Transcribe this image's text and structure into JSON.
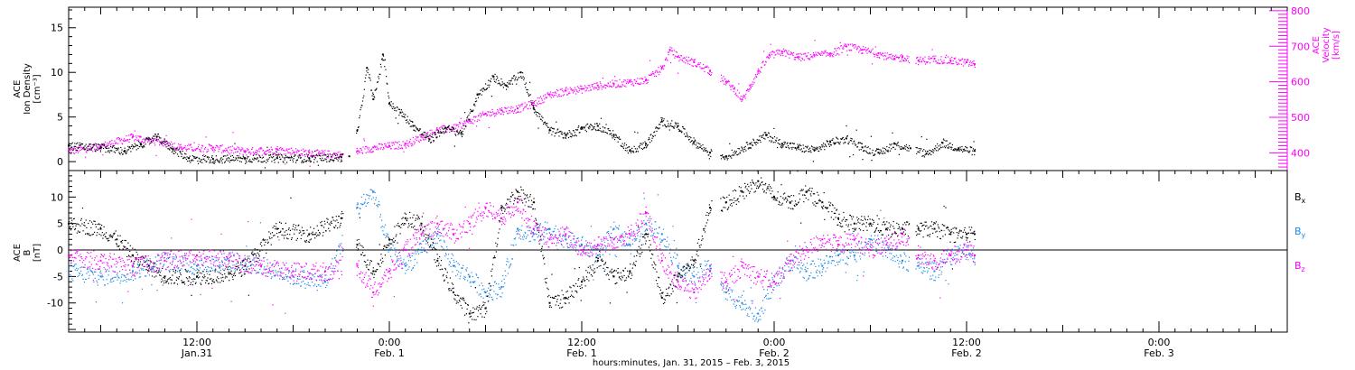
{
  "figure": {
    "xlabel": "hours:minutes, Jan. 31, 2015 – Feb. 3, 2015",
    "x_start_hours": 4,
    "x_end_hours": 80,
    "data_end_hours": 60.5
  },
  "colors": {
    "black": "#000000",
    "magenta": "#ff00ff",
    "blue": "#1e88e5"
  },
  "chart_data": [
    {
      "type": "scatter",
      "panel": "plasma",
      "left_axis": {
        "label_lines": [
          "ACE",
          "Ion Density",
          "[cm⁻³]"
        ],
        "ticks": [
          0,
          5,
          10,
          15
        ],
        "ylim": [
          -1,
          17.3
        ]
      },
      "right_axis": {
        "label_lines": [
          "ACE",
          "Velocity",
          "[km/s]"
        ],
        "ticks": [
          400,
          500,
          600,
          700,
          800
        ],
        "ylim": [
          350,
          810
        ],
        "color": "#ff00ff"
      },
      "series": [
        {
          "name": "Ion Density",
          "axis": "left",
          "color": "#000000",
          "points": [
            [
              4,
              1.8
            ],
            [
              6,
              1.6
            ],
            [
              7.5,
              1.2
            ],
            [
              8.5,
              2.0
            ],
            [
              9.5,
              2.8
            ],
            [
              10.5,
              1.4
            ],
            [
              11.5,
              0.4
            ],
            [
              13,
              0.3
            ],
            [
              15,
              0.4
            ],
            [
              17,
              0.4
            ],
            [
              19,
              0.4
            ],
            [
              21,
              0.5
            ],
            [
              21.5,
              0.6
            ],
            [
              22,
              3.5
            ],
            [
              22.6,
              10.5
            ],
            [
              23,
              7
            ],
            [
              23.6,
              12
            ],
            [
              24,
              6.5
            ],
            [
              24.7,
              5.5
            ],
            [
              25.5,
              4
            ],
            [
              26.5,
              2.5
            ],
            [
              27.5,
              3.8
            ],
            [
              28.5,
              3.2
            ],
            [
              29.5,
              7.5
            ],
            [
              30.5,
              9.5
            ],
            [
              31.3,
              8.5
            ],
            [
              32.2,
              10
            ],
            [
              33,
              6
            ],
            [
              34,
              3.5
            ],
            [
              35,
              3
            ],
            [
              36,
              3.8
            ],
            [
              37,
              4
            ],
            [
              38,
              3
            ],
            [
              39,
              1.2
            ],
            [
              40,
              2
            ],
            [
              41,
              4.5
            ],
            [
              42,
              4
            ],
            [
              43,
              2.2
            ],
            [
              44,
              1
            ],
            [
              45,
              0.6
            ],
            [
              46.5,
              2
            ],
            [
              47.5,
              3
            ],
            [
              48.5,
              2
            ],
            [
              49.5,
              1.6
            ],
            [
              50.5,
              1.3
            ],
            [
              51.5,
              2.2
            ],
            [
              52.5,
              2.6
            ],
            [
              53.5,
              1.6
            ],
            [
              54.5,
              1.0
            ],
            [
              55.5,
              2.0
            ],
            [
              56.5,
              1.5
            ],
            [
              57.5,
              0.9
            ],
            [
              58.5,
              2.1
            ],
            [
              59.5,
              1.5
            ],
            [
              60.5,
              1.2
            ]
          ]
        },
        {
          "name": "Velocity",
          "axis": "right",
          "color": "#ff00ff",
          "points": [
            [
              4,
              405
            ],
            [
              6,
              420
            ],
            [
              8,
              445
            ],
            [
              9,
              435
            ],
            [
              10,
              430
            ],
            [
              11,
              415
            ],
            [
              13,
              415
            ],
            [
              15,
              405
            ],
            [
              17,
              410
            ],
            [
              19,
              400
            ],
            [
              21,
              395
            ],
            [
              22,
              405
            ],
            [
              23,
              415
            ],
            [
              24,
              420
            ],
            [
              25,
              425
            ],
            [
              26,
              445
            ],
            [
              27,
              465
            ],
            [
              28,
              470
            ],
            [
              29,
              490
            ],
            [
              30,
              510
            ],
            [
              31,
              520
            ],
            [
              32,
              525
            ],
            [
              33,
              540
            ],
            [
              34,
              565
            ],
            [
              35,
              575
            ],
            [
              36,
              580
            ],
            [
              37,
              590
            ],
            [
              38,
              595
            ],
            [
              39,
              600
            ],
            [
              40,
              605
            ],
            [
              41,
              640
            ],
            [
              41.5,
              690
            ],
            [
              42,
              670
            ],
            [
              43,
              655
            ],
            [
              44,
              630
            ],
            [
              45,
              600
            ],
            [
              45.5,
              580
            ],
            [
              46,
              550
            ],
            [
              46.5,
              590
            ],
            [
              47,
              630
            ],
            [
              47.7,
              675
            ],
            [
              48.5,
              685
            ],
            [
              49.5,
              670
            ],
            [
              50.5,
              675
            ],
            [
              51.5,
              680
            ],
            [
              52.5,
              700
            ],
            [
              53.5,
              690
            ],
            [
              54.5,
              680
            ],
            [
              55.5,
              665
            ],
            [
              56,
              670
            ],
            [
              57,
              660
            ],
            [
              58,
              665
            ],
            [
              59,
              660
            ],
            [
              60,
              655
            ],
            [
              60.5,
              650
            ]
          ]
        }
      ]
    },
    {
      "type": "scatter",
      "panel": "magnetic",
      "left_axis": {
        "label_lines": [
          "ACE",
          "B",
          "[nT]"
        ],
        "ticks": [
          -10,
          -5,
          0,
          5,
          10
        ],
        "ylim": [
          -15.5,
          15
        ],
        "zero_line": true
      },
      "legend": {
        "placement": "right",
        "labels": [
          {
            "name": "Bx",
            "base": "B",
            "sub": "x",
            "color": "#000000"
          },
          {
            "name": "By",
            "base": "B",
            "sub": "y",
            "color": "#1e88e5"
          },
          {
            "name": "Bz",
            "base": "B",
            "sub": "z",
            "color": "#ff00ff"
          }
        ]
      },
      "series": [
        {
          "name": "Bx",
          "color": "#000000",
          "points": [
            [
              4,
              5
            ],
            [
              6,
              4
            ],
            [
              7,
              2
            ],
            [
              8,
              -1
            ],
            [
              9,
              -3
            ],
            [
              10,
              -5
            ],
            [
              12,
              -5
            ],
            [
              14,
              -4.5
            ],
            [
              15,
              -3
            ],
            [
              17,
              4
            ],
            [
              19,
              3
            ],
            [
              21,
              6
            ],
            [
              22,
              1
            ],
            [
              23,
              -4
            ],
            [
              24,
              2
            ],
            [
              25,
              6
            ],
            [
              26,
              5
            ],
            [
              27,
              -2
            ],
            [
              28,
              -8
            ],
            [
              29,
              -12
            ],
            [
              30,
              -11
            ],
            [
              31,
              8
            ],
            [
              32,
              11
            ],
            [
              33,
              9
            ],
            [
              34,
              -10
            ],
            [
              35,
              -9
            ],
            [
              36,
              -6
            ],
            [
              37,
              -2
            ],
            [
              38,
              -5
            ],
            [
              39,
              -4
            ],
            [
              40,
              3
            ],
            [
              41,
              -9
            ],
            [
              42,
              -5
            ],
            [
              43,
              -2
            ],
            [
              44,
              8
            ],
            [
              45,
              9
            ],
            [
              46,
              11
            ],
            [
              47,
              13
            ],
            [
              48,
              10
            ],
            [
              49,
              9
            ],
            [
              50,
              11
            ],
            [
              51,
              9
            ],
            [
              52,
              6
            ],
            [
              53,
              5
            ],
            [
              54,
              5
            ],
            [
              55,
              4
            ],
            [
              56,
              4
            ],
            [
              57,
              4
            ],
            [
              58,
              4
            ],
            [
              59,
              3
            ],
            [
              60,
              3
            ],
            [
              60.5,
              3
            ]
          ]
        },
        {
          "name": "By",
          "color": "#1e88e5",
          "points": [
            [
              4,
              -4
            ],
            [
              6,
              -5
            ],
            [
              8,
              -4
            ],
            [
              10,
              -2
            ],
            [
              12,
              -3
            ],
            [
              14,
              -2
            ],
            [
              16,
              -3
            ],
            [
              18,
              -5
            ],
            [
              20,
              -6
            ],
            [
              22,
              8
            ],
            [
              23,
              11
            ],
            [
              24,
              0
            ],
            [
              25,
              -3
            ],
            [
              26,
              0
            ],
            [
              27,
              3
            ],
            [
              28,
              -3
            ],
            [
              29,
              -5
            ],
            [
              30,
              -8
            ],
            [
              31,
              -7
            ],
            [
              32,
              4
            ],
            [
              33,
              3
            ],
            [
              34,
              4
            ],
            [
              35,
              2
            ],
            [
              36,
              1
            ],
            [
              37,
              -1
            ],
            [
              38,
              4
            ],
            [
              39,
              1
            ],
            [
              40,
              5
            ],
            [
              41,
              3
            ],
            [
              42,
              -3
            ],
            [
              43,
              -5
            ],
            [
              44,
              -3
            ],
            [
              45,
              -8
            ],
            [
              46,
              -10
            ],
            [
              47,
              -12
            ],
            [
              48,
              -6
            ],
            [
              49,
              -2
            ],
            [
              50,
              -4
            ],
            [
              51,
              -3
            ],
            [
              52,
              -1
            ],
            [
              53,
              -1
            ],
            [
              54,
              2
            ],
            [
              55,
              0
            ],
            [
              56,
              -2
            ],
            [
              57,
              -3
            ],
            [
              58,
              -4
            ],
            [
              59,
              -1
            ],
            [
              60,
              0
            ],
            [
              60.5,
              -1
            ]
          ]
        },
        {
          "name": "Bz",
          "color": "#ff00ff",
          "points": [
            [
              4,
              -1
            ],
            [
              6,
              -2
            ],
            [
              8,
              -3
            ],
            [
              10,
              -2
            ],
            [
              12,
              -1
            ],
            [
              14,
              -2
            ],
            [
              16,
              -3
            ],
            [
              18,
              -4
            ],
            [
              20,
              -4
            ],
            [
              22,
              -3
            ],
            [
              23,
              -8
            ],
            [
              24,
              -4
            ],
            [
              25,
              0
            ],
            [
              26,
              3
            ],
            [
              27,
              5
            ],
            [
              28,
              3
            ],
            [
              29,
              5
            ],
            [
              30,
              8
            ],
            [
              31,
              6
            ],
            [
              32,
              9
            ],
            [
              33,
              4
            ],
            [
              34,
              2
            ],
            [
              35,
              3
            ],
            [
              36,
              0
            ],
            [
              37,
              1
            ],
            [
              38,
              2
            ],
            [
              39,
              3
            ],
            [
              40,
              7
            ],
            [
              41,
              -2
            ],
            [
              42,
              -6
            ],
            [
              43,
              -8
            ],
            [
              44,
              -4
            ],
            [
              45,
              -6
            ],
            [
              46,
              -3
            ],
            [
              47,
              -5
            ],
            [
              48,
              -6
            ],
            [
              49,
              -2
            ],
            [
              50,
              0
            ],
            [
              51,
              2
            ],
            [
              52,
              1
            ],
            [
              53,
              2
            ],
            [
              54,
              0
            ],
            [
              55,
              1
            ],
            [
              56,
              3
            ],
            [
              57,
              -1
            ],
            [
              58,
              -2
            ],
            [
              59,
              -1
            ],
            [
              60,
              0
            ],
            [
              60.5,
              -1
            ]
          ]
        }
      ]
    }
  ],
  "x_ticks": [
    {
      "hours": 12,
      "time": "12:00",
      "date": "Jan.31"
    },
    {
      "hours": 24,
      "time": "0:00",
      "date": "Feb. 1"
    },
    {
      "hours": 36,
      "time": "12:00",
      "date": "Feb. 1"
    },
    {
      "hours": 48,
      "time": "0:00",
      "date": "Feb. 2"
    },
    {
      "hours": 60,
      "time": "12:00",
      "date": "Feb. 2"
    },
    {
      "hours": 72,
      "time": "0:00",
      "date": "Feb. 3"
    }
  ]
}
